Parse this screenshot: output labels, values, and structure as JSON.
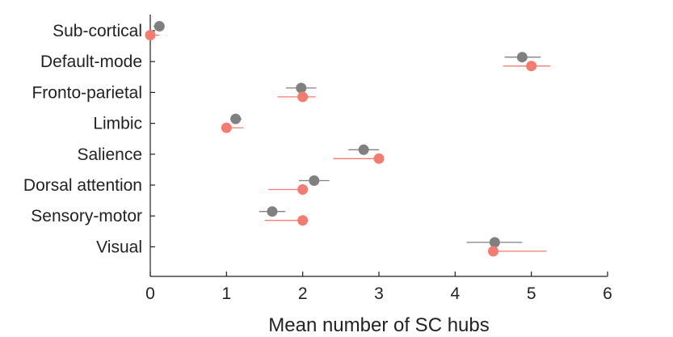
{
  "chart_data": {
    "type": "scatter",
    "orientation": "horizontal",
    "title": "",
    "xlabel": "Mean number of SC hubs",
    "ylabel": "",
    "xlim": [
      0,
      6
    ],
    "xticks": [
      0,
      1,
      2,
      3,
      4,
      5,
      6
    ],
    "grid": false,
    "legend": "none",
    "categories": [
      "Sub-cortical",
      "Default-mode",
      "Fronto-parietal",
      "Limbic",
      "Salience",
      "Dorsal attention",
      "Sensory-motor",
      "Visual"
    ],
    "series": [
      {
        "color": "#808080",
        "values": [
          0.12,
          4.88,
          1.98,
          1.12,
          2.8,
          2.15,
          1.6,
          4.52
        ],
        "err_low": [
          0.04,
          4.65,
          1.78,
          1.05,
          2.6,
          1.95,
          1.43,
          4.15
        ],
        "err_high": [
          0.18,
          5.12,
          2.18,
          1.2,
          3.0,
          2.35,
          1.77,
          4.88
        ]
      },
      {
        "color": "#f47b6f",
        "values": [
          0.0,
          5.0,
          2.0,
          1.0,
          3.0,
          2.0,
          2.0,
          4.5
        ],
        "err_low": [
          0.0,
          4.63,
          1.67,
          1.0,
          2.4,
          1.55,
          1.5,
          4.5
        ],
        "err_high": [
          0.12,
          5.25,
          2.17,
          1.22,
          3.0,
          2.0,
          2.0,
          5.2
        ]
      }
    ]
  }
}
